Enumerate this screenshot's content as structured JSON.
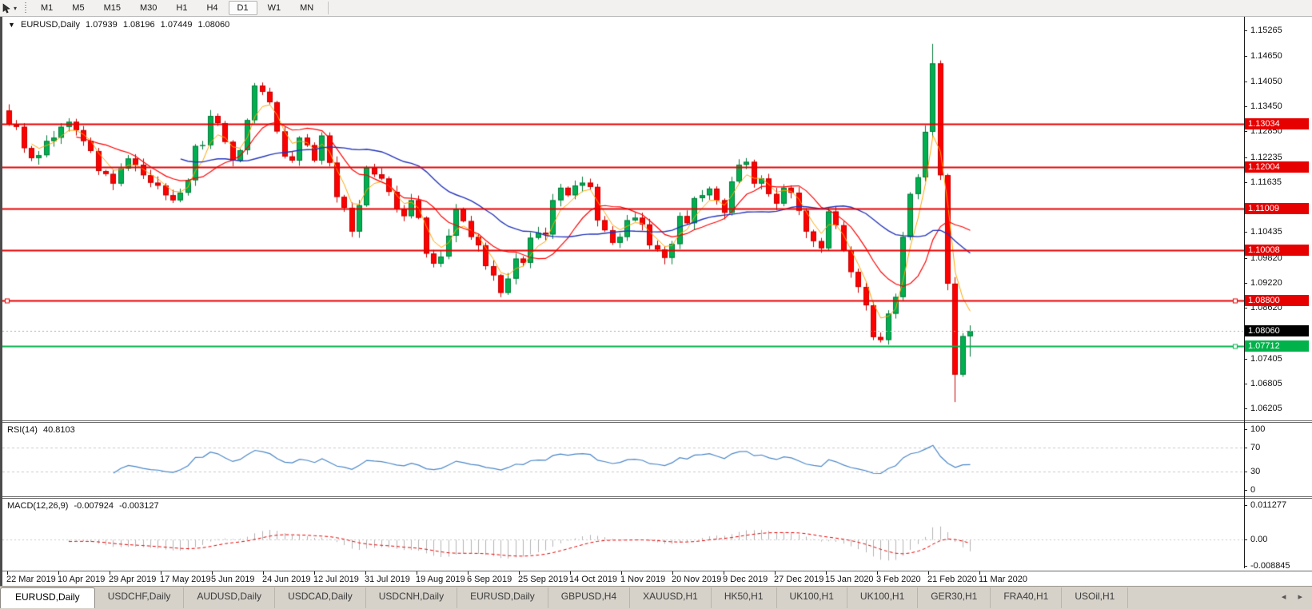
{
  "toolbar": {
    "timeframes": [
      "M1",
      "M5",
      "M15",
      "M30",
      "H1",
      "H4",
      "D1",
      "W1",
      "MN"
    ],
    "active": "D1"
  },
  "title": {
    "collapse_icon": "▼",
    "symbol": "EURUSD,Daily",
    "open": "1.07939",
    "high": "1.08196",
    "low": "1.07449",
    "close": "1.08060"
  },
  "price_axis": {
    "ticks": [
      "1.15265",
      "1.14650",
      "1.14050",
      "1.13450",
      "1.12850",
      "1.12235",
      "1.11635",
      "1.10435",
      "1.09820",
      "1.09220",
      "1.08620",
      "1.07405",
      "1.06805",
      "1.06205"
    ]
  },
  "rsi": {
    "name": "RSI(14)",
    "value": "40.8103",
    "axis_labels": [
      {
        "text": "100",
        "v": 100
      },
      {
        "text": "70",
        "v": 70
      },
      {
        "text": "30",
        "v": 30
      },
      {
        "text": "0",
        "v": 0
      }
    ],
    "levels": [
      70,
      30
    ],
    "period": 14,
    "ylim": [
      0,
      100
    ]
  },
  "macd": {
    "name": "MACD(12,26,9)",
    "main_value": "-0.007924",
    "signal_value": "-0.003127",
    "axis_labels": [
      {
        "text": "0.011277",
        "v": 0.011277
      },
      {
        "text": "0.00",
        "v": 0
      },
      {
        "text": "-0.008845",
        "v": -0.008845
      }
    ],
    "params": [
      12,
      26,
      9
    ],
    "ylim": [
      -0.008845,
      0.011277
    ]
  },
  "tabs": {
    "items": [
      "EURUSD,Daily",
      "USDCHF,Daily",
      "AUDUSD,Daily",
      "USDCAD,Daily",
      "USDCNH,Daily",
      "EURUSD,Daily",
      "GBPUSD,H4",
      "XAUUSD,H1",
      "HK50,H1",
      "UK100,H1",
      "UK100,H1",
      "GER30,H1",
      "FRA40,H1",
      "USOil,H1"
    ],
    "active_index": 0,
    "nav_left": "◂",
    "nav_right": "▸"
  },
  "colors": {
    "hline_red": "#e60000",
    "hline_green": "#00b24a",
    "badge_black": "#000000",
    "candle_up": "#00b050",
    "candle_up_stroke": "#057a3a",
    "candle_down": "#ff0000",
    "candle_down_stroke": "#c40000",
    "ma_fast": "#ffa500",
    "ma_mid": "#ff0000",
    "ma_slow": "#2233bb",
    "rsi_line": "#4a86c8",
    "level_dash": "#c9c9c9",
    "macd_hist": "#b3b3b3",
    "macd_signal": "#e60000",
    "current_line": "#aaaaaa"
  },
  "chart_data": {
    "type": "candlestick",
    "symbol": "EURUSD",
    "timeframe": "Daily",
    "title": "EURUSD,Daily 1.07939 1.08196 1.07449 1.08060",
    "ylim": [
      1.0596,
      1.1556
    ],
    "x_labels": [
      "22 Mar 2019",
      "10 Apr 2019",
      "29 Apr 2019",
      "17 May 2019",
      "5 Jun 2019",
      "24 Jun 2019",
      "12 Jul 2019",
      "31 Jul 2019",
      "19 Aug 2019",
      "6 Sep 2019",
      "25 Sep 2019",
      "14 Oct 2019",
      "1 Nov 2019",
      "20 Nov 2019",
      "9 Dec 2019",
      "27 Dec 2019",
      "15 Jan 2020",
      "3 Feb 2020",
      "21 Feb 2020",
      "11 Mar 2020"
    ],
    "first_open": 1.1335,
    "closes": [
      1.1302,
      1.1296,
      1.1245,
      1.1221,
      1.1228,
      1.1262,
      1.127,
      1.1296,
      1.1308,
      1.1288,
      1.1262,
      1.1238,
      1.119,
      1.1183,
      1.116,
      1.1196,
      1.122,
      1.1205,
      1.118,
      1.1162,
      1.1155,
      1.1132,
      1.112,
      1.1138,
      1.1168,
      1.125,
      1.1252,
      1.1322,
      1.1305,
      1.126,
      1.1215,
      1.124,
      1.1312,
      1.1395,
      1.138,
      1.1355,
      1.1285,
      1.1225,
      1.1215,
      1.127,
      1.1252,
      1.1215,
      1.1275,
      1.121,
      1.1128,
      1.1102,
      1.1045,
      1.1108,
      1.1198,
      1.1182,
      1.1172,
      1.114,
      1.1098,
      1.1082,
      1.112,
      1.1078,
      1.0992,
      1.0968,
      1.0985,
      1.1035,
      1.1098,
      1.107,
      1.1032,
      1.1012,
      1.0962,
      1.094,
      1.0898,
      1.0932,
      1.098,
      1.097,
      1.103,
      1.1042,
      1.1038,
      1.112,
      1.115,
      1.1132,
      1.1155,
      1.1162,
      1.1152,
      1.1072,
      1.1048,
      1.1018,
      1.1032,
      1.1072,
      1.1078,
      1.1062,
      1.1012,
      1.1002,
      1.0982,
      1.1015,
      1.1082,
      1.1065,
      1.1125,
      1.1132,
      1.1148,
      1.112,
      1.109,
      1.1165,
      1.1205,
      1.1212,
      1.116,
      1.1172,
      1.1135,
      1.1112,
      1.115,
      1.1138,
      1.1095,
      1.1045,
      1.1022,
      1.1005,
      1.1093,
      1.106,
      1.1,
      1.0948,
      1.0912,
      1.0868,
      1.0792,
      1.0785,
      1.0848,
      1.0888,
      1.1032,
      1.1135,
      1.1175,
      1.1284,
      1.1448,
      1.118,
      1.092,
      1.0702,
      1.0794,
      1.0806
    ],
    "wick_overrides": {
      "124": {
        "high": 1.1495
      },
      "127": {
        "low": 1.0636
      },
      "129": {
        "high": 1.082,
        "low": 1.0745
      }
    },
    "moving_averages": [
      {
        "name": "MA fast",
        "period": 4,
        "type": "ema",
        "color_key": "ma_fast"
      },
      {
        "name": "MA mid",
        "period": 10,
        "type": "sma",
        "color_key": "ma_mid"
      },
      {
        "name": "MA slow",
        "period": 24,
        "type": "sma",
        "color_key": "ma_slow"
      }
    ],
    "hlines": [
      {
        "price": 1.13034,
        "label": "1.13034",
        "color": "red"
      },
      {
        "price": 1.12004,
        "label": "1.12004",
        "color": "red"
      },
      {
        "price": 1.11009,
        "label": "1.11009",
        "color": "red"
      },
      {
        "price": 1.10008,
        "label": "1.10008",
        "color": "red"
      },
      {
        "price": 1.088,
        "label": "1.08800",
        "color": "red",
        "handles": [
          6,
          1542
        ]
      },
      {
        "price": 1.07712,
        "label": "1.07712",
        "color": "green",
        "handles": [
          1542
        ]
      }
    ],
    "current_price": {
      "price": 1.0806,
      "label": "1.08060"
    }
  }
}
